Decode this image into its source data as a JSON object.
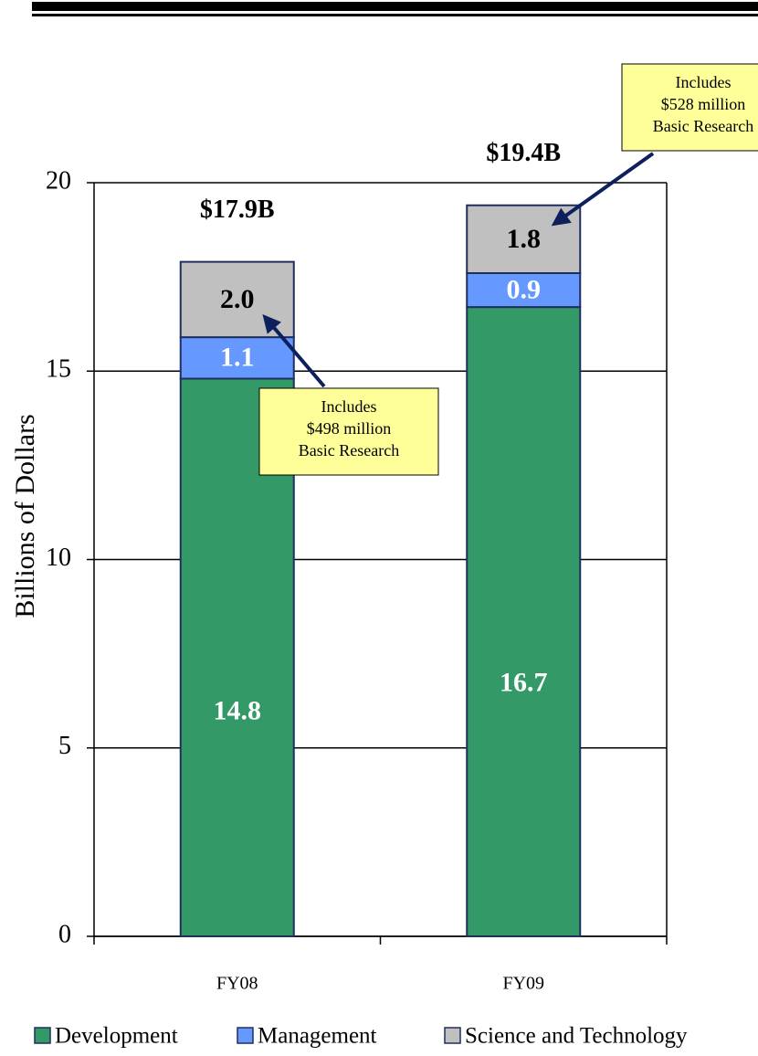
{
  "chart_data": {
    "type": "stacked_bar",
    "y_label": "Billions of Dollars",
    "categories": [
      "FY08",
      "FY09"
    ],
    "series": [
      {
        "name": "Development",
        "color": "#339966",
        "values": [
          14.8,
          16.7
        ],
        "value_labels": [
          "14.8",
          "16.7"
        ],
        "label_color": "#ffffff"
      },
      {
        "name": "Management",
        "color": "#6699ff",
        "values": [
          1.1,
          0.9
        ],
        "value_labels": [
          "1.1",
          "0.9"
        ],
        "label_color": "#ffffff"
      },
      {
        "name": "Science and Technology",
        "color": "#c0c0c0",
        "values": [
          2.0,
          1.8
        ],
        "value_labels": [
          "2.0",
          "1.8"
        ],
        "label_color": "#000000"
      }
    ],
    "totals": [
      {
        "value": 17.9,
        "label": "$17.9B"
      },
      {
        "value": 19.4,
        "label": "$19.4B"
      }
    ],
    "annotations": [
      {
        "lines": [
          "Includes",
          "$498 million",
          "Basic Research"
        ]
      },
      {
        "lines": [
          "Includes",
          "$528 million",
          "Basic Research"
        ]
      }
    ],
    "ylim": [
      0,
      20
    ],
    "yticks": [
      0,
      5,
      10,
      15,
      20
    ],
    "grid": true
  }
}
